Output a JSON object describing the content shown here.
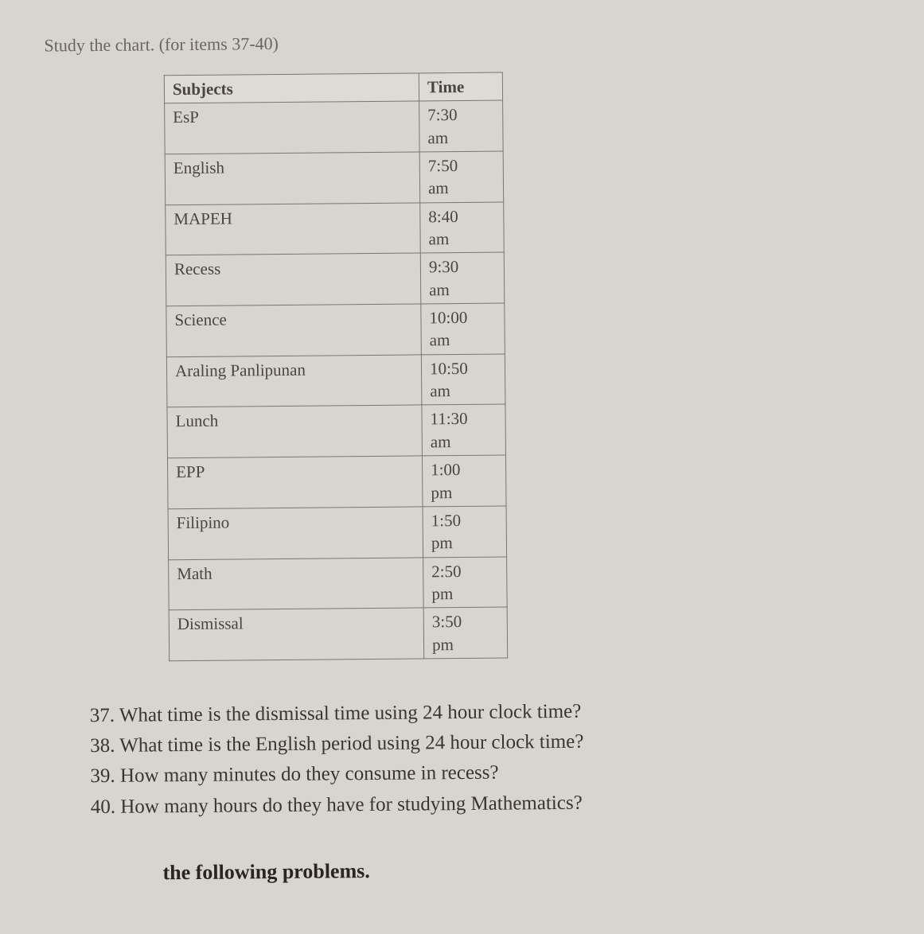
{
  "instruction": "Study the chart. (for items 37-40)",
  "table": {
    "headers": {
      "subject": "Subjects",
      "time": "Time"
    },
    "rows": [
      {
        "subject": "EsP",
        "time": "7:30",
        "period": "am"
      },
      {
        "subject": "English",
        "time": "7:50",
        "period": "am"
      },
      {
        "subject": "MAPEH",
        "time": "8:40",
        "period": "am"
      },
      {
        "subject": "Recess",
        "time": "9:30",
        "period": "am"
      },
      {
        "subject": "Science",
        "time": "10:00",
        "period": "am"
      },
      {
        "subject": "Araling Panlipunan",
        "time": "10:50",
        "period": "am"
      },
      {
        "subject": "Lunch",
        "time": "11:30",
        "period": "am"
      },
      {
        "subject": "EPP",
        "time": "1:00",
        "period": "pm"
      },
      {
        "subject": "Filipino",
        "time": "1:50",
        "period": "pm"
      },
      {
        "subject": "Math",
        "time": "2:50",
        "period": "pm"
      },
      {
        "subject": "Dismissal",
        "time": "3:50",
        "period": "pm"
      }
    ]
  },
  "questions": [
    {
      "number": "37.",
      "text": "What time is the dismissal time using 24 hour clock time?"
    },
    {
      "number": "38.",
      "text": "What time is the English period using 24 hour clock time?"
    },
    {
      "number": "39.",
      "text": "How many minutes do they consume in recess?"
    },
    {
      "number": "40.",
      "text": "How many hours do they have for studying Mathematics?"
    }
  ],
  "footer_fragment": "the following problems."
}
